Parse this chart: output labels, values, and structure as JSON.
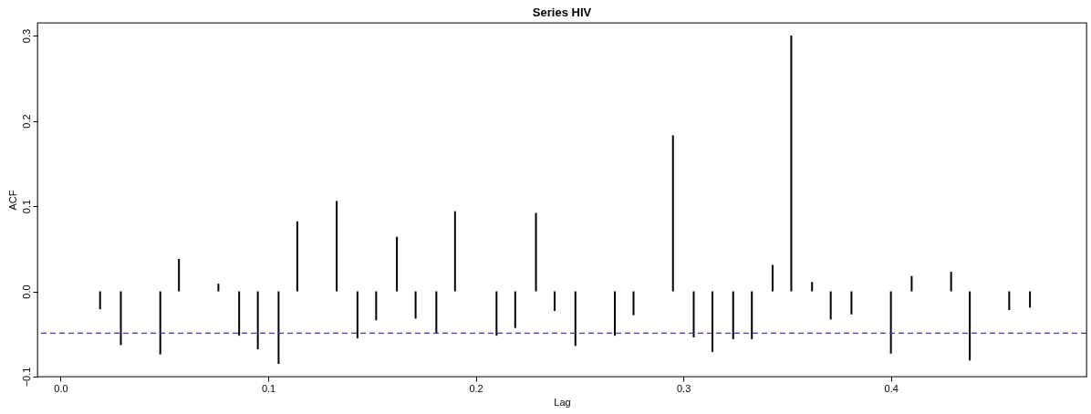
{
  "chart_data": {
    "type": "bar",
    "title": "Series HIV",
    "xlabel": "Lag",
    "ylabel": "ACF",
    "x": [
      0.019,
      0.029,
      0.048,
      0.057,
      0.076,
      0.086,
      0.095,
      0.105,
      0.114,
      0.133,
      0.143,
      0.152,
      0.162,
      0.171,
      0.181,
      0.19,
      0.21,
      0.219,
      0.229,
      0.238,
      0.248,
      0.267,
      0.276,
      0.295,
      0.305,
      0.314,
      0.324,
      0.333,
      0.343,
      0.352,
      0.362,
      0.371,
      0.381,
      0.4,
      0.41,
      0.429,
      0.438,
      0.457,
      0.467
    ],
    "series": [
      {
        "color": "#000000",
        "values": [
          -0.021,
          -0.063,
          -0.074,
          0.038,
          0.009,
          -0.052,
          -0.068,
          -0.085,
          0.082,
          0.106,
          -0.055,
          -0.034,
          0.064,
          -0.032,
          -0.049,
          0.094,
          -0.052,
          -0.043,
          0.092,
          -0.023,
          -0.064,
          -0.052,
          -0.028,
          0.183,
          -0.054,
          -0.071,
          -0.056,
          -0.056,
          0.031,
          0.3,
          0.011,
          -0.033,
          -0.027,
          -0.073,
          0.018,
          0.023,
          -0.081,
          -0.022,
          -0.019
        ]
      }
    ],
    "xlim": [
      -0.009,
      0.492
    ],
    "xticks": [
      {
        "value": 0,
        "label": "0.0"
      },
      0.1,
      0.2,
      0.3,
      0.4
    ],
    "ylim": [
      -0.1,
      0.315
    ],
    "yticks": [
      -0.1,
      {
        "value": 0,
        "label": "0.0"
      },
      0.1,
      0.2,
      0.3
    ],
    "ref_lines": [
      {
        "axis": "y",
        "value": -0.049,
        "color": "#3b3bb0",
        "line_style": "dashed"
      }
    ],
    "grid": false
  }
}
